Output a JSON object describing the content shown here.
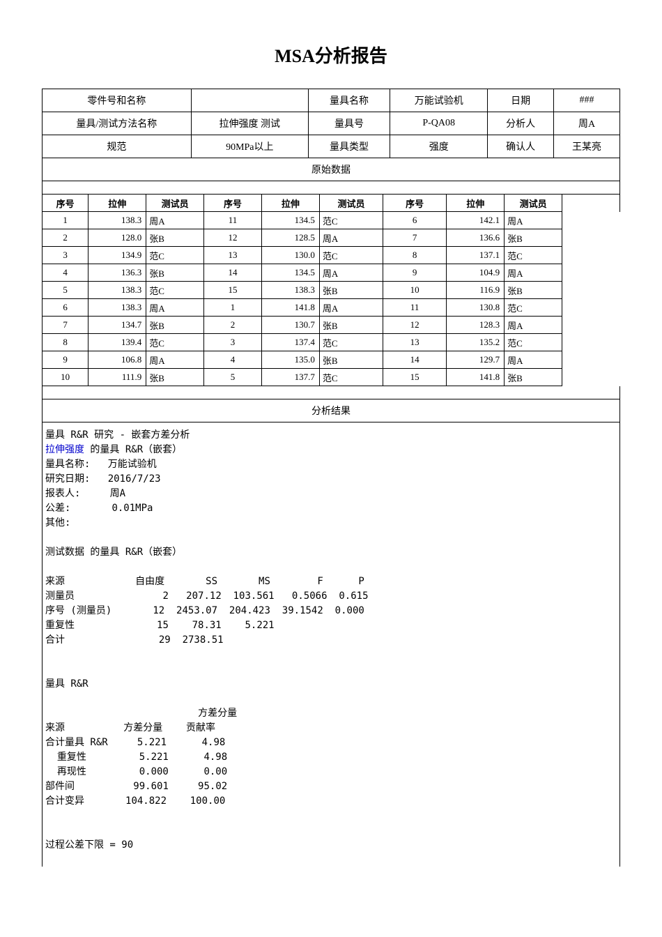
{
  "title": "MSA分析报告",
  "meta": {
    "partLabel": "零件号和名称",
    "partVal": "",
    "gaugeNameLabel": "量具名称",
    "gaugeNameVal": "万能试验机",
    "dateLabel": "日期",
    "dateVal": "###",
    "methodLabel": "量具/测试方法名称",
    "methodVal": "拉伸强度 测试",
    "gaugeNoLabel": "量具号",
    "gaugeNoVal": "P-QA08",
    "analystLabel": "分析人",
    "analystVal": "周A",
    "specLabel": "规范",
    "specVal": "90MPa以上",
    "gaugeTypeLabel": "量具类型",
    "gaugeTypeVal": "强度",
    "approverLabel": "确认人",
    "approverVal": "王某亮"
  },
  "rawHeader": "原始数据",
  "cols": {
    "seq": "序号",
    "tensile": "拉伸",
    "tester": "测试员"
  },
  "data": {
    "block1": [
      {
        "seq": "1",
        "val": "138.3",
        "t": "周A"
      },
      {
        "seq": "2",
        "val": "128.0",
        "t": "张B"
      },
      {
        "seq": "3",
        "val": "134.9",
        "t": "范C"
      },
      {
        "seq": "4",
        "val": "136.3",
        "t": "张B"
      },
      {
        "seq": "5",
        "val": "138.3",
        "t": "范C"
      },
      {
        "seq": "6",
        "val": "138.3",
        "t": "周A"
      },
      {
        "seq": "7",
        "val": "134.7",
        "t": "张B"
      },
      {
        "seq": "8",
        "val": "139.4",
        "t": "范C"
      },
      {
        "seq": "9",
        "val": "106.8",
        "t": "周A"
      },
      {
        "seq": "10",
        "val": "111.9",
        "t": "张B"
      }
    ],
    "block2": [
      {
        "seq": "11",
        "val": "134.5",
        "t": "范C"
      },
      {
        "seq": "12",
        "val": "128.5",
        "t": "周A"
      },
      {
        "seq": "13",
        "val": "130.0",
        "t": "范C"
      },
      {
        "seq": "14",
        "val": "134.5",
        "t": "周A"
      },
      {
        "seq": "15",
        "val": "138.3",
        "t": "张B"
      },
      {
        "seq": "1",
        "val": "141.8",
        "t": "周A"
      },
      {
        "seq": "2",
        "val": "130.7",
        "t": "张B"
      },
      {
        "seq": "3",
        "val": "137.4",
        "t": "范C"
      },
      {
        "seq": "4",
        "val": "135.0",
        "t": "张B"
      },
      {
        "seq": "5",
        "val": "137.7",
        "t": "范C"
      }
    ],
    "block3": [
      {
        "seq": "6",
        "val": "142.1",
        "t": "周A"
      },
      {
        "seq": "7",
        "val": "136.6",
        "t": "张B"
      },
      {
        "seq": "8",
        "val": "137.1",
        "t": "范C"
      },
      {
        "seq": "9",
        "val": "104.9",
        "t": "周A"
      },
      {
        "seq": "10",
        "val": "116.9",
        "t": "张B"
      },
      {
        "seq": "11",
        "val": "130.8",
        "t": "范C"
      },
      {
        "seq": "12",
        "val": "128.3",
        "t": "周A"
      },
      {
        "seq": "13",
        "val": "135.2",
        "t": "范C"
      },
      {
        "seq": "14",
        "val": "129.7",
        "t": "周A"
      },
      {
        "seq": "15",
        "val": "141.8",
        "t": "张B"
      }
    ]
  },
  "analysisHeader": "分析结果",
  "analysis": {
    "line1": "量具 R&R 研究 - 嵌套方差分析",
    "line2a": "拉伸强度",
    "line2b": " 的量具 R&R（嵌套）",
    "label_gaugeName": "量具名称:",
    "val_gaugeName": "万能试验机",
    "label_date": "研究日期:",
    "val_date": "2016/7/23",
    "label_reporter": "报表人:",
    "val_reporter": "周A",
    "label_tol": "公差:",
    "val_tol": "0.01MPa",
    "label_other": "其他:",
    "testDataTitle": "测试数据 的量具 R&R（嵌套）",
    "anova": {
      "h_src": "来源",
      "h_df": "自由度",
      "h_ss": "SS",
      "h_ms": "MS",
      "h_f": "F",
      "h_p": "P",
      "r1": {
        "src": "测量员",
        "df": "2",
        "ss": "207.12",
        "ms": "103.561",
        "f": "0.5066",
        "p": "0.615"
      },
      "r2": {
        "src": "序号 (测量员)",
        "df": "12",
        "ss": "2453.07",
        "ms": "204.423",
        "f": "39.1542",
        "p": "0.000"
      },
      "r3": {
        "src": "重复性",
        "df": "15",
        "ss": "78.31",
        "ms": "5.221",
        "f": "",
        "p": ""
      },
      "r4": {
        "src": "合计",
        "df": "29",
        "ss": "2738.51",
        "ms": "",
        "f": "",
        "p": ""
      }
    },
    "grrTitle": "量具 R&R",
    "var": {
      "h_src": "来源",
      "h_var": "方差分量",
      "h_contrib1": "方差分量",
      "h_contrib2": "贡献率",
      "r1": {
        "src": "合计量具 R&R",
        "var": "5.221",
        "c": "4.98"
      },
      "r2": {
        "src": "  重复性",
        "var": "5.221",
        "c": "4.98"
      },
      "r3": {
        "src": "  再现性",
        "var": "0.000",
        "c": "0.00"
      },
      "r4": {
        "src": "部件间",
        "var": "99.601",
        "c": "95.02"
      },
      "r5": {
        "src": "合计变异",
        "var": "104.822",
        "c": "100.00"
      }
    },
    "lowerTol": "过程公差下限 = 90"
  }
}
